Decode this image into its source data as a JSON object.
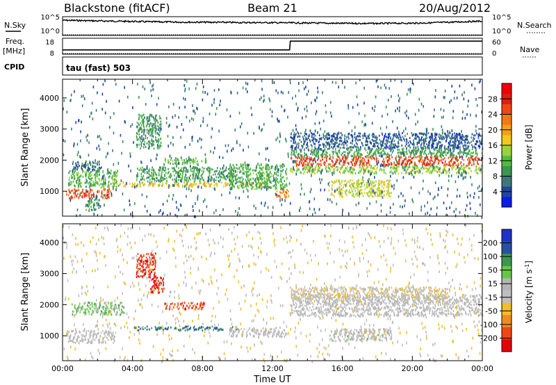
{
  "header": {
    "station": "Blackstone (fitACF)",
    "beam": "Beam 21",
    "date": "20/Aug/2012"
  },
  "top_panels": {
    "nsky": {
      "label": "N.Sky",
      "tick_top": "10^5",
      "tick_bottom": "10^0"
    },
    "nsearch": {
      "label": "N.Search",
      "tick_top": "10^5",
      "tick_bottom": "10^0"
    },
    "freq": {
      "label": "Freq.",
      "unit": "[MHz]",
      "tick_top": "18",
      "tick_bottom": "8"
    },
    "nave": {
      "label": "Nave",
      "tick_top": "60",
      "tick_bottom": "0"
    },
    "cpid": {
      "label": "CPID",
      "value": "tau (fast) 503"
    }
  },
  "colors": {
    "power_scale": [
      "#0a1ee6",
      "#1e46a0",
      "#3c7878",
      "#3c9650",
      "#50be3c",
      "#9bd23c",
      "#f0c81e",
      "#f5a014",
      "#f57814",
      "#f04614",
      "#dc1e14",
      "#f00000"
    ],
    "velocity_scale": [
      "#1e32c8",
      "#2850a0",
      "#3c9650",
      "#64c846",
      "#b4b4b4",
      "#bebebe",
      "#f0be28",
      "#f08c1e",
      "#f04614",
      "#e60000"
    ]
  },
  "chart_data": [
    {
      "type": "line",
      "panel": "nsky_nsearch",
      "x_unit": "UT hours",
      "series": [
        {
          "name": "N.Sky",
          "x": [
            0,
            1,
            2,
            3,
            4,
            5,
            6,
            7,
            8,
            9,
            10,
            11,
            12,
            13,
            14,
            15,
            16,
            17,
            18,
            19,
            20,
            21,
            22,
            23,
            24
          ],
          "values": [
            30000,
            25000,
            18000,
            15000,
            12000,
            9000,
            8000,
            7000,
            6500,
            6000,
            5000,
            5000,
            4500,
            4000,
            3500,
            3000,
            2800,
            2500,
            2500,
            2800,
            3000,
            4000,
            6000,
            10000,
            15000
          ]
        },
        {
          "name": "N.Search",
          "x": [
            0,
            24
          ],
          "values": [
            1,
            1
          ]
        }
      ],
      "yscale": "log",
      "ylim": [
        1,
        100000
      ]
    },
    {
      "type": "line",
      "panel": "freq_nave",
      "series": [
        {
          "name": "Freq.",
          "x": [
            0,
            12.98,
            13.02,
            24
          ],
          "values": [
            10.5,
            10.5,
            16.5,
            16.5
          ]
        },
        {
          "name": "Nave",
          "x": [
            0,
            24
          ],
          "values": [
            0,
            0
          ]
        }
      ],
      "ylim": [
        8,
        18
      ],
      "y2lim": [
        0,
        60
      ]
    },
    {
      "type": "heatmap",
      "panel": "power",
      "ylabel": "Slant Range [km]",
      "xlim": [
        0,
        24
      ],
      "ylim": [
        200,
        4600
      ],
      "yticks": [
        "1000",
        "2000",
        "3000",
        "4000"
      ],
      "colorbar": {
        "label": "Power [dB]",
        "ticks": [
          "4",
          "8",
          "12",
          "16",
          "20",
          "24",
          "28"
        ],
        "range": [
          0,
          32
        ]
      },
      "regions": [
        {
          "x": [
            0.2,
            2.8
          ],
          "range_km": [
            800,
            1100
          ],
          "value": 25
        },
        {
          "x": [
            0.3,
            3.2
          ],
          "range_km": [
            1150,
            1700
          ],
          "value": 12
        },
        {
          "x": [
            0.5,
            2.2
          ],
          "range_km": [
            1700,
            2000
          ],
          "value": 6
        },
        {
          "x": [
            1.3,
            2.1
          ],
          "range_km": [
            400,
            800
          ],
          "value": 9
        },
        {
          "x": [
            3.2,
            11.8
          ],
          "range_km": [
            1180,
            1320
          ],
          "value": 18
        },
        {
          "x": [
            4.2,
            9.8
          ],
          "range_km": [
            1330,
            1800
          ],
          "value": 10
        },
        {
          "x": [
            5.8,
            8.2
          ],
          "range_km": [
            1900,
            2100
          ],
          "value": 12
        },
        {
          "x": [
            4.2,
            5.6
          ],
          "range_km": [
            2400,
            3500
          ],
          "value": 9
        },
        {
          "x": [
            9.5,
            12.8
          ],
          "range_km": [
            1100,
            1900
          ],
          "value": 11
        },
        {
          "x": [
            12.2,
            12.9
          ],
          "range_km": [
            800,
            1100
          ],
          "value": 22
        },
        {
          "x": [
            13.0,
            24.0
          ],
          "range_km": [
            1850,
            2150
          ],
          "value": 26
        },
        {
          "x": [
            13.0,
            24.0
          ],
          "range_km": [
            1600,
            1850
          ],
          "value": 14
        },
        {
          "x": [
            13.0,
            24.0
          ],
          "range_km": [
            2150,
            2400
          ],
          "value": 10
        },
        {
          "x": [
            15.2,
            18.8
          ],
          "range_km": [
            850,
            1400
          ],
          "value": 16
        },
        {
          "x": [
            13.0,
            24.0
          ],
          "range_km": [
            2400,
            2900
          ],
          "value": 5
        },
        {
          "x": [
            0.0,
            24.0
          ],
          "range_km": [
            200,
            4600
          ],
          "value": 6
        }
      ]
    },
    {
      "type": "heatmap",
      "panel": "velocity",
      "xlabel": "Time UT",
      "ylabel": "Slant Range [km]",
      "xlim": [
        0,
        24
      ],
      "ylim": [
        200,
        4600
      ],
      "xticks": [
        "00:00",
        "04:00",
        "08:00",
        "12:00",
        "16:00",
        "20:00",
        "00:00"
      ],
      "yticks": [
        "1000",
        "2000",
        "3000",
        "4000"
      ],
      "colorbar": {
        "label": "Velocity [m s^-1]",
        "ticks": [
          "200",
          "100",
          "50",
          "15",
          "-15",
          "-50",
          "-100",
          "-200"
        ],
        "range": [
          -250,
          250
        ]
      },
      "regions": [
        {
          "x": [
            0.2,
            3.0
          ],
          "range_km": [
            800,
            1200
          ],
          "value": 0
        },
        {
          "x": [
            0.5,
            3.5
          ],
          "range_km": [
            1700,
            2100
          ],
          "value": -70
        },
        {
          "x": [
            4.0,
            10.0
          ],
          "range_km": [
            1200,
            1330
          ],
          "value": -150
        },
        {
          "x": [
            5.8,
            8.2
          ],
          "range_km": [
            1880,
            2100
          ],
          "value": 180
        },
        {
          "x": [
            5.0,
            5.8
          ],
          "range_km": [
            2400,
            2900
          ],
          "value": 220
        },
        {
          "x": [
            4.2,
            5.3
          ],
          "range_km": [
            2900,
            3700
          ],
          "value": 200
        },
        {
          "x": [
            9.5,
            12.8
          ],
          "range_km": [
            1000,
            1300
          ],
          "value": 0
        },
        {
          "x": [
            13.0,
            24.0
          ],
          "range_km": [
            1650,
            2350
          ],
          "value": 0
        },
        {
          "x": [
            13.0,
            22.0
          ],
          "range_km": [
            2200,
            2600
          ],
          "value": 35
        },
        {
          "x": [
            15.2,
            18.8
          ],
          "range_km": [
            850,
            1250
          ],
          "value": -10
        },
        {
          "x": [
            0.0,
            24.0
          ],
          "range_km": [
            200,
            4600
          ],
          "value": 40
        }
      ]
    }
  ]
}
